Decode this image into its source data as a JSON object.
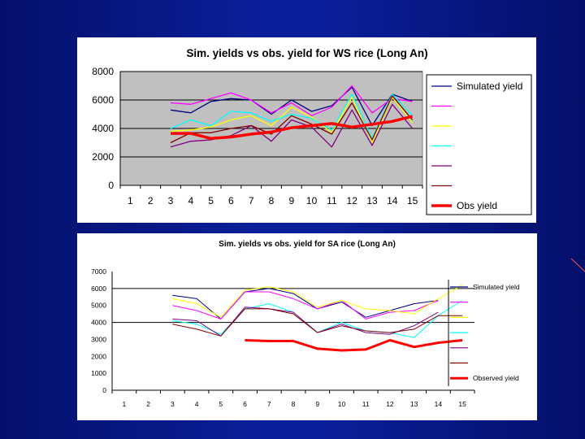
{
  "chart_data": [
    {
      "type": "line",
      "title": "Sim.  yields vs obs. yield for WS rice (Long An)",
      "xlabel": "",
      "ylabel": "",
      "categories": [
        "1",
        "2",
        "3",
        "4",
        "5",
        "6",
        "7",
        "8",
        "9",
        "10",
        "11",
        "12",
        "13",
        "14",
        "15"
      ],
      "ylim": [
        0,
        8000
      ],
      "yticks": [
        0,
        2000,
        4000,
        6000,
        8000
      ],
      "grid": "horizontal",
      "legend_placement": "right",
      "plot_background": "#c0c0c0",
      "series": [
        {
          "name": "Simulated yield",
          "color": "#000080",
          "width": 1.3,
          "values": [
            null,
            null,
            5300,
            5100,
            5900,
            6100,
            6000,
            5000,
            6000,
            5200,
            5600,
            6900,
            4200,
            6400,
            5900
          ]
        },
        {
          "name": "",
          "color": "#ff00ff",
          "width": 1.3,
          "values": [
            null,
            null,
            5800,
            5700,
            6100,
            6500,
            6000,
            5100,
            5800,
            4900,
            5500,
            7000,
            5100,
            6100,
            5900
          ]
        },
        {
          "name": "",
          "color": "#ffff00",
          "width": 1.3,
          "values": [
            null,
            null,
            3800,
            3900,
            4100,
            4600,
            4900,
            4200,
            5500,
            4800,
            3700,
            6200,
            3000,
            6200,
            4400
          ]
        },
        {
          "name": "",
          "color": "#00ffff",
          "width": 1.3,
          "values": [
            null,
            null,
            4000,
            4600,
            4200,
            5200,
            5100,
            4500,
            5000,
            4700,
            3900,
            6400,
            3300,
            6400,
            4900
          ]
        },
        {
          "name": "",
          "color": "#800080",
          "width": 1.3,
          "values": [
            null,
            null,
            2700,
            3100,
            3200,
            3500,
            4200,
            3100,
            4600,
            4100,
            2700,
            5300,
            2800,
            5700,
            4000
          ]
        },
        {
          "name": "",
          "color": "#800000",
          "width": 1.3,
          "values": [
            null,
            null,
            3000,
            3700,
            3700,
            4000,
            4200,
            3600,
            4900,
            4300,
            3600,
            5800,
            3200,
            6300,
            4600
          ]
        },
        {
          "name": "Obs yield",
          "color": "#ff0000",
          "width": 3.5,
          "values": [
            null,
            null,
            3650,
            3650,
            3300,
            3400,
            3600,
            3750,
            4050,
            4200,
            4350,
            4100,
            4300,
            4500,
            4850
          ]
        }
      ]
    },
    {
      "type": "line",
      "title": "Sim. yields vs obs. yield for SA rice (Long An)",
      "xlabel": "",
      "ylabel": "",
      "categories": [
        "1",
        "2",
        "3",
        "4",
        "5",
        "6",
        "7",
        "8",
        "9",
        "10",
        "11",
        "12",
        "13",
        "14",
        "15"
      ],
      "ylim": [
        0,
        7000
      ],
      "yticks": [
        0,
        1000,
        2000,
        3000,
        4000,
        5000,
        6000,
        7000
      ],
      "grid": "horizontal",
      "legend_placement": "right",
      "plot_background": "#ffffff",
      "series": [
        {
          "name": "Simulated yield",
          "color": "#000080",
          "width": 1,
          "values": [
            null,
            null,
            5600,
            5400,
            4200,
            5800,
            6000,
            5700,
            4800,
            5200,
            4300,
            4700,
            5100,
            5300,
            null
          ]
        },
        {
          "name": "",
          "color": "#ff00ff",
          "width": 1,
          "values": [
            null,
            null,
            5000,
            4700,
            4200,
            5800,
            5800,
            5400,
            4800,
            5300,
            4200,
            4600,
            4700,
            5300,
            null
          ]
        },
        {
          "name": "",
          "color": "#ffff00",
          "width": 1,
          "values": [
            null,
            null,
            5400,
            5100,
            4300,
            5900,
            6100,
            5800,
            4900,
            5300,
            4800,
            4700,
            4500,
            5400,
            6200
          ]
        },
        {
          "name": "",
          "color": "#00ffff",
          "width": 1,
          "values": [
            null,
            null,
            4100,
            3900,
            3300,
            4800,
            5100,
            4600,
            3400,
            4000,
            3500,
            3400,
            3100,
            4400,
            5300
          ]
        },
        {
          "name": "",
          "color": "#800080",
          "width": 1,
          "values": [
            null,
            null,
            4200,
            4100,
            3200,
            4900,
            4800,
            4600,
            3400,
            3900,
            3400,
            3300,
            3800,
            4600,
            null
          ]
        },
        {
          "name": "",
          "color": "#800000",
          "width": 1,
          "values": [
            null,
            null,
            3900,
            3600,
            3200,
            4800,
            4800,
            4500,
            3400,
            3800,
            3500,
            3400,
            3600,
            4400,
            4400
          ]
        },
        {
          "name": "Observed yield",
          "color": "#ff0000",
          "width": 3,
          "values": [
            null,
            null,
            null,
            null,
            null,
            2950,
            2900,
            2900,
            2450,
            2350,
            2400,
            2950,
            2550,
            2800,
            2950
          ]
        }
      ]
    }
  ]
}
